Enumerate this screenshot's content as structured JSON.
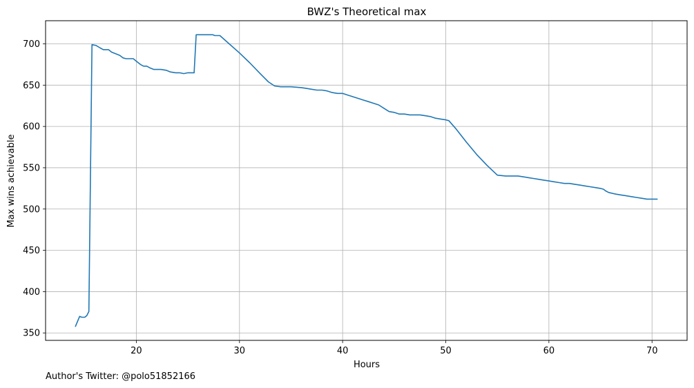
{
  "footer": {
    "credit": "Author's Twitter: @polo51852166"
  },
  "chart_data": {
    "type": "line",
    "title": "BWZ's Theoretical max",
    "xlabel": "Hours",
    "ylabel": "Max wins achievable",
    "xlim": [
      11.2,
      73.4
    ],
    "ylim": [
      341,
      728
    ],
    "xticks": [
      20,
      30,
      40,
      50,
      60,
      70
    ],
    "yticks": [
      350,
      400,
      450,
      500,
      550,
      600,
      650,
      700
    ],
    "grid": true,
    "line_color": "#1f77b4",
    "series": [
      {
        "x": [
          14.1,
          14.5,
          14.7,
          15.0,
          15.2,
          15.4,
          15.7,
          16.1,
          16.5,
          16.8,
          17.3,
          17.6,
          18.0,
          18.4,
          18.7,
          19.0,
          19.3,
          19.7,
          20.0,
          20.4,
          20.7,
          21.0,
          21.3,
          21.7,
          22.0,
          22.4,
          22.9,
          23.3,
          23.8,
          24.2,
          24.6,
          25.0,
          25.3,
          25.6,
          25.8,
          26.2,
          26.5,
          27.0,
          27.4,
          27.6,
          28.1,
          29.0,
          30.0,
          31.0,
          32.0,
          32.8,
          33.4,
          34.0,
          35.0,
          36.0,
          36.5,
          37.0,
          37.5,
          38.0,
          38.5,
          39.0,
          39.5,
          40.0,
          40.5,
          41.0,
          41.5,
          42.0,
          42.5,
          43.0,
          43.5,
          44.0,
          44.5,
          45.0,
          45.5,
          46.0,
          46.5,
          47.0,
          47.5,
          48.0,
          48.5,
          49.0,
          49.5,
          50.0,
          50.3,
          51.0,
          52.0,
          53.0,
          54.0,
          55.0,
          55.8,
          56.0,
          57.0,
          57.5,
          58.0,
          58.5,
          59.0,
          59.5,
          60.0,
          60.5,
          61.0,
          61.5,
          62.0,
          62.5,
          63.0,
          63.5,
          64.0,
          64.5,
          65.0,
          65.3,
          65.5,
          65.8,
          66.5,
          67.0,
          67.5,
          68.0,
          68.5,
          69.0,
          69.5,
          70.0,
          70.5
        ],
        "y": [
          358,
          370,
          369,
          369,
          371,
          376,
          699,
          698,
          695,
          693,
          693,
          690,
          688,
          686,
          683,
          682,
          682,
          682,
          679,
          675,
          673,
          673,
          671,
          669,
          669,
          669,
          668,
          666,
          665,
          665,
          664,
          665,
          665,
          665,
          711,
          711,
          711,
          711,
          711,
          710,
          710,
          700,
          689,
          677,
          664,
          654,
          649,
          648,
          648,
          647,
          646,
          645,
          644,
          644,
          643,
          641,
          640,
          640,
          638,
          636,
          634,
          632,
          630,
          628,
          626,
          622,
          618,
          617,
          615,
          615,
          614,
          614,
          614,
          613,
          612,
          610,
          609,
          608,
          607,
          597,
          581,
          566,
          553,
          541,
          540,
          540,
          540,
          539,
          538,
          537,
          536,
          535,
          534,
          533,
          532,
          531,
          531,
          530,
          529,
          528,
          527,
          526,
          525,
          524,
          522,
          520,
          518,
          517,
          516,
          515,
          514,
          513,
          512,
          512,
          512
        ]
      }
    ]
  }
}
